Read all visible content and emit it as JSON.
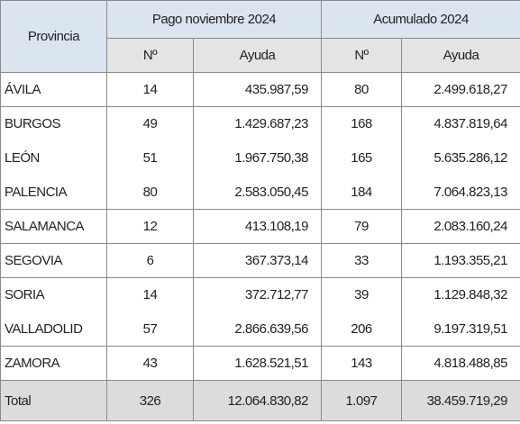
{
  "table": {
    "header": {
      "first": "Provincia",
      "groups": [
        "Pago noviembre 2024",
        "Acumulado 2024"
      ],
      "sub": [
        "Nº",
        "Ayuda",
        "Nº",
        "Ayuda"
      ]
    },
    "rows": [
      [
        "ÁVILA",
        "14",
        "435.987,59",
        "80",
        "2.499.618,27"
      ],
      [
        "BURGOS",
        "49",
        "1.429.687,23",
        "168",
        "4.837.819,64"
      ],
      [
        "LEÓN",
        "51",
        "1.967.750,38",
        "165",
        "5.635.286,12"
      ],
      [
        "PALENCIA",
        "80",
        "2.583.050,45",
        "184",
        "7.064.823,13"
      ],
      [
        "SALAMANCA",
        "12",
        "413.108,19",
        "79",
        "2.083.160,24"
      ],
      [
        "SEGOVIA",
        "6",
        "367.373,14",
        "33",
        "1.193.355,21"
      ],
      [
        "SORIA",
        "14",
        "372.712,77",
        "39",
        "1.129.848,32"
      ],
      [
        "VALLADOLID",
        "57",
        "2.866.639,56",
        "206",
        "9.197.319,51"
      ],
      [
        "ZAMORA",
        "43",
        "1.628.521,51",
        "143",
        "4.818.488,85"
      ]
    ],
    "total": [
      "Total",
      "326",
      "12.064.830,82",
      "1.097",
      "38.459.719,29"
    ]
  }
}
